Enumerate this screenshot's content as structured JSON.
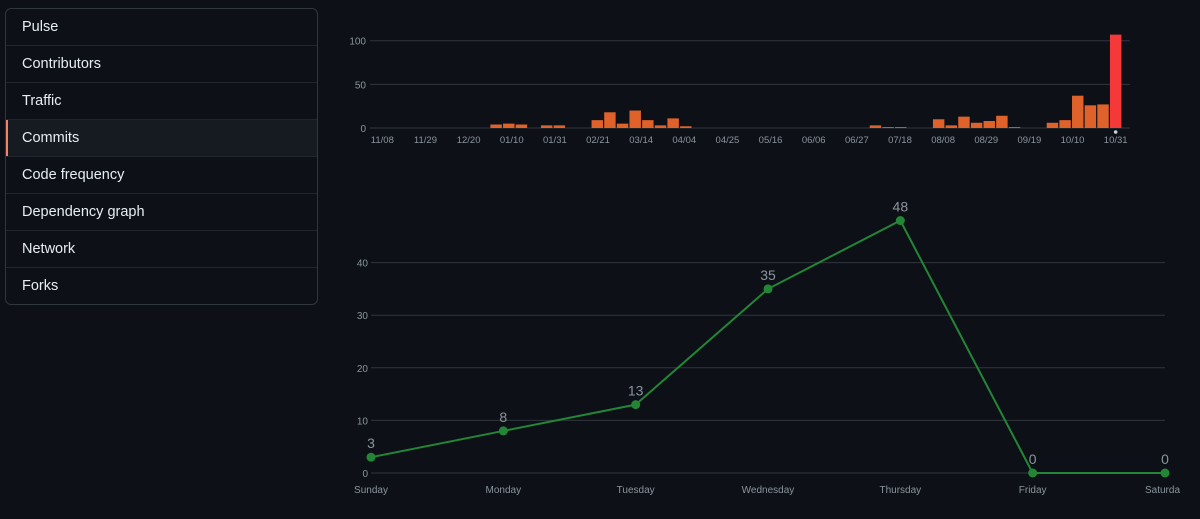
{
  "sidebar": {
    "items": [
      {
        "label": "Pulse",
        "selected": false
      },
      {
        "label": "Contributors",
        "selected": false
      },
      {
        "label": "Traffic",
        "selected": false
      },
      {
        "label": "Commits",
        "selected": true
      },
      {
        "label": "Code frequency",
        "selected": false
      },
      {
        "label": "Dependency graph",
        "selected": false
      },
      {
        "label": "Network",
        "selected": false
      },
      {
        "label": "Forks",
        "selected": false
      }
    ]
  },
  "colors": {
    "accent": "#f78166",
    "bar": "#e0622b",
    "bar_highlight": "#f53838",
    "line": "#238636"
  },
  "chart_data": [
    {
      "type": "bar",
      "title": "",
      "xlabel": "",
      "ylabel": "",
      "ylim": [
        0,
        110
      ],
      "yticks": [
        0,
        50,
        100
      ],
      "x_tick_labels": [
        "11/08",
        "11/29",
        "12/20",
        "01/10",
        "01/31",
        "02/21",
        "03/14",
        "04/04",
        "04/25",
        "05/16",
        "06/06",
        "06/27",
        "07/18",
        "08/08",
        "08/29",
        "09/19",
        "10/10",
        "10/31"
      ],
      "values": [
        0,
        0,
        0,
        0,
        0,
        0,
        0,
        0,
        0,
        4,
        5,
        4,
        0,
        3,
        3,
        0,
        0,
        9,
        18,
        5,
        20,
        9,
        3,
        11,
        2,
        0,
        0,
        0,
        0,
        0,
        0,
        0,
        0,
        0,
        0,
        0,
        0,
        0,
        0,
        3,
        1,
        1,
        0,
        0,
        10,
        3,
        13,
        6,
        8,
        14,
        1,
        0,
        0,
        6,
        9,
        37,
        26,
        27,
        107
      ],
      "highlight_index": 58,
      "grid": true
    },
    {
      "type": "line",
      "title": "",
      "xlabel": "",
      "ylabel": "",
      "categories": [
        "Sunday",
        "Monday",
        "Tuesday",
        "Wednesday",
        "Thursday",
        "Friday",
        "Saturday"
      ],
      "values": [
        3,
        8,
        13,
        35,
        48,
        0,
        0
      ],
      "ylim": [
        0,
        50
      ],
      "yticks": [
        0,
        10,
        20,
        30,
        40
      ],
      "grid": true
    }
  ]
}
